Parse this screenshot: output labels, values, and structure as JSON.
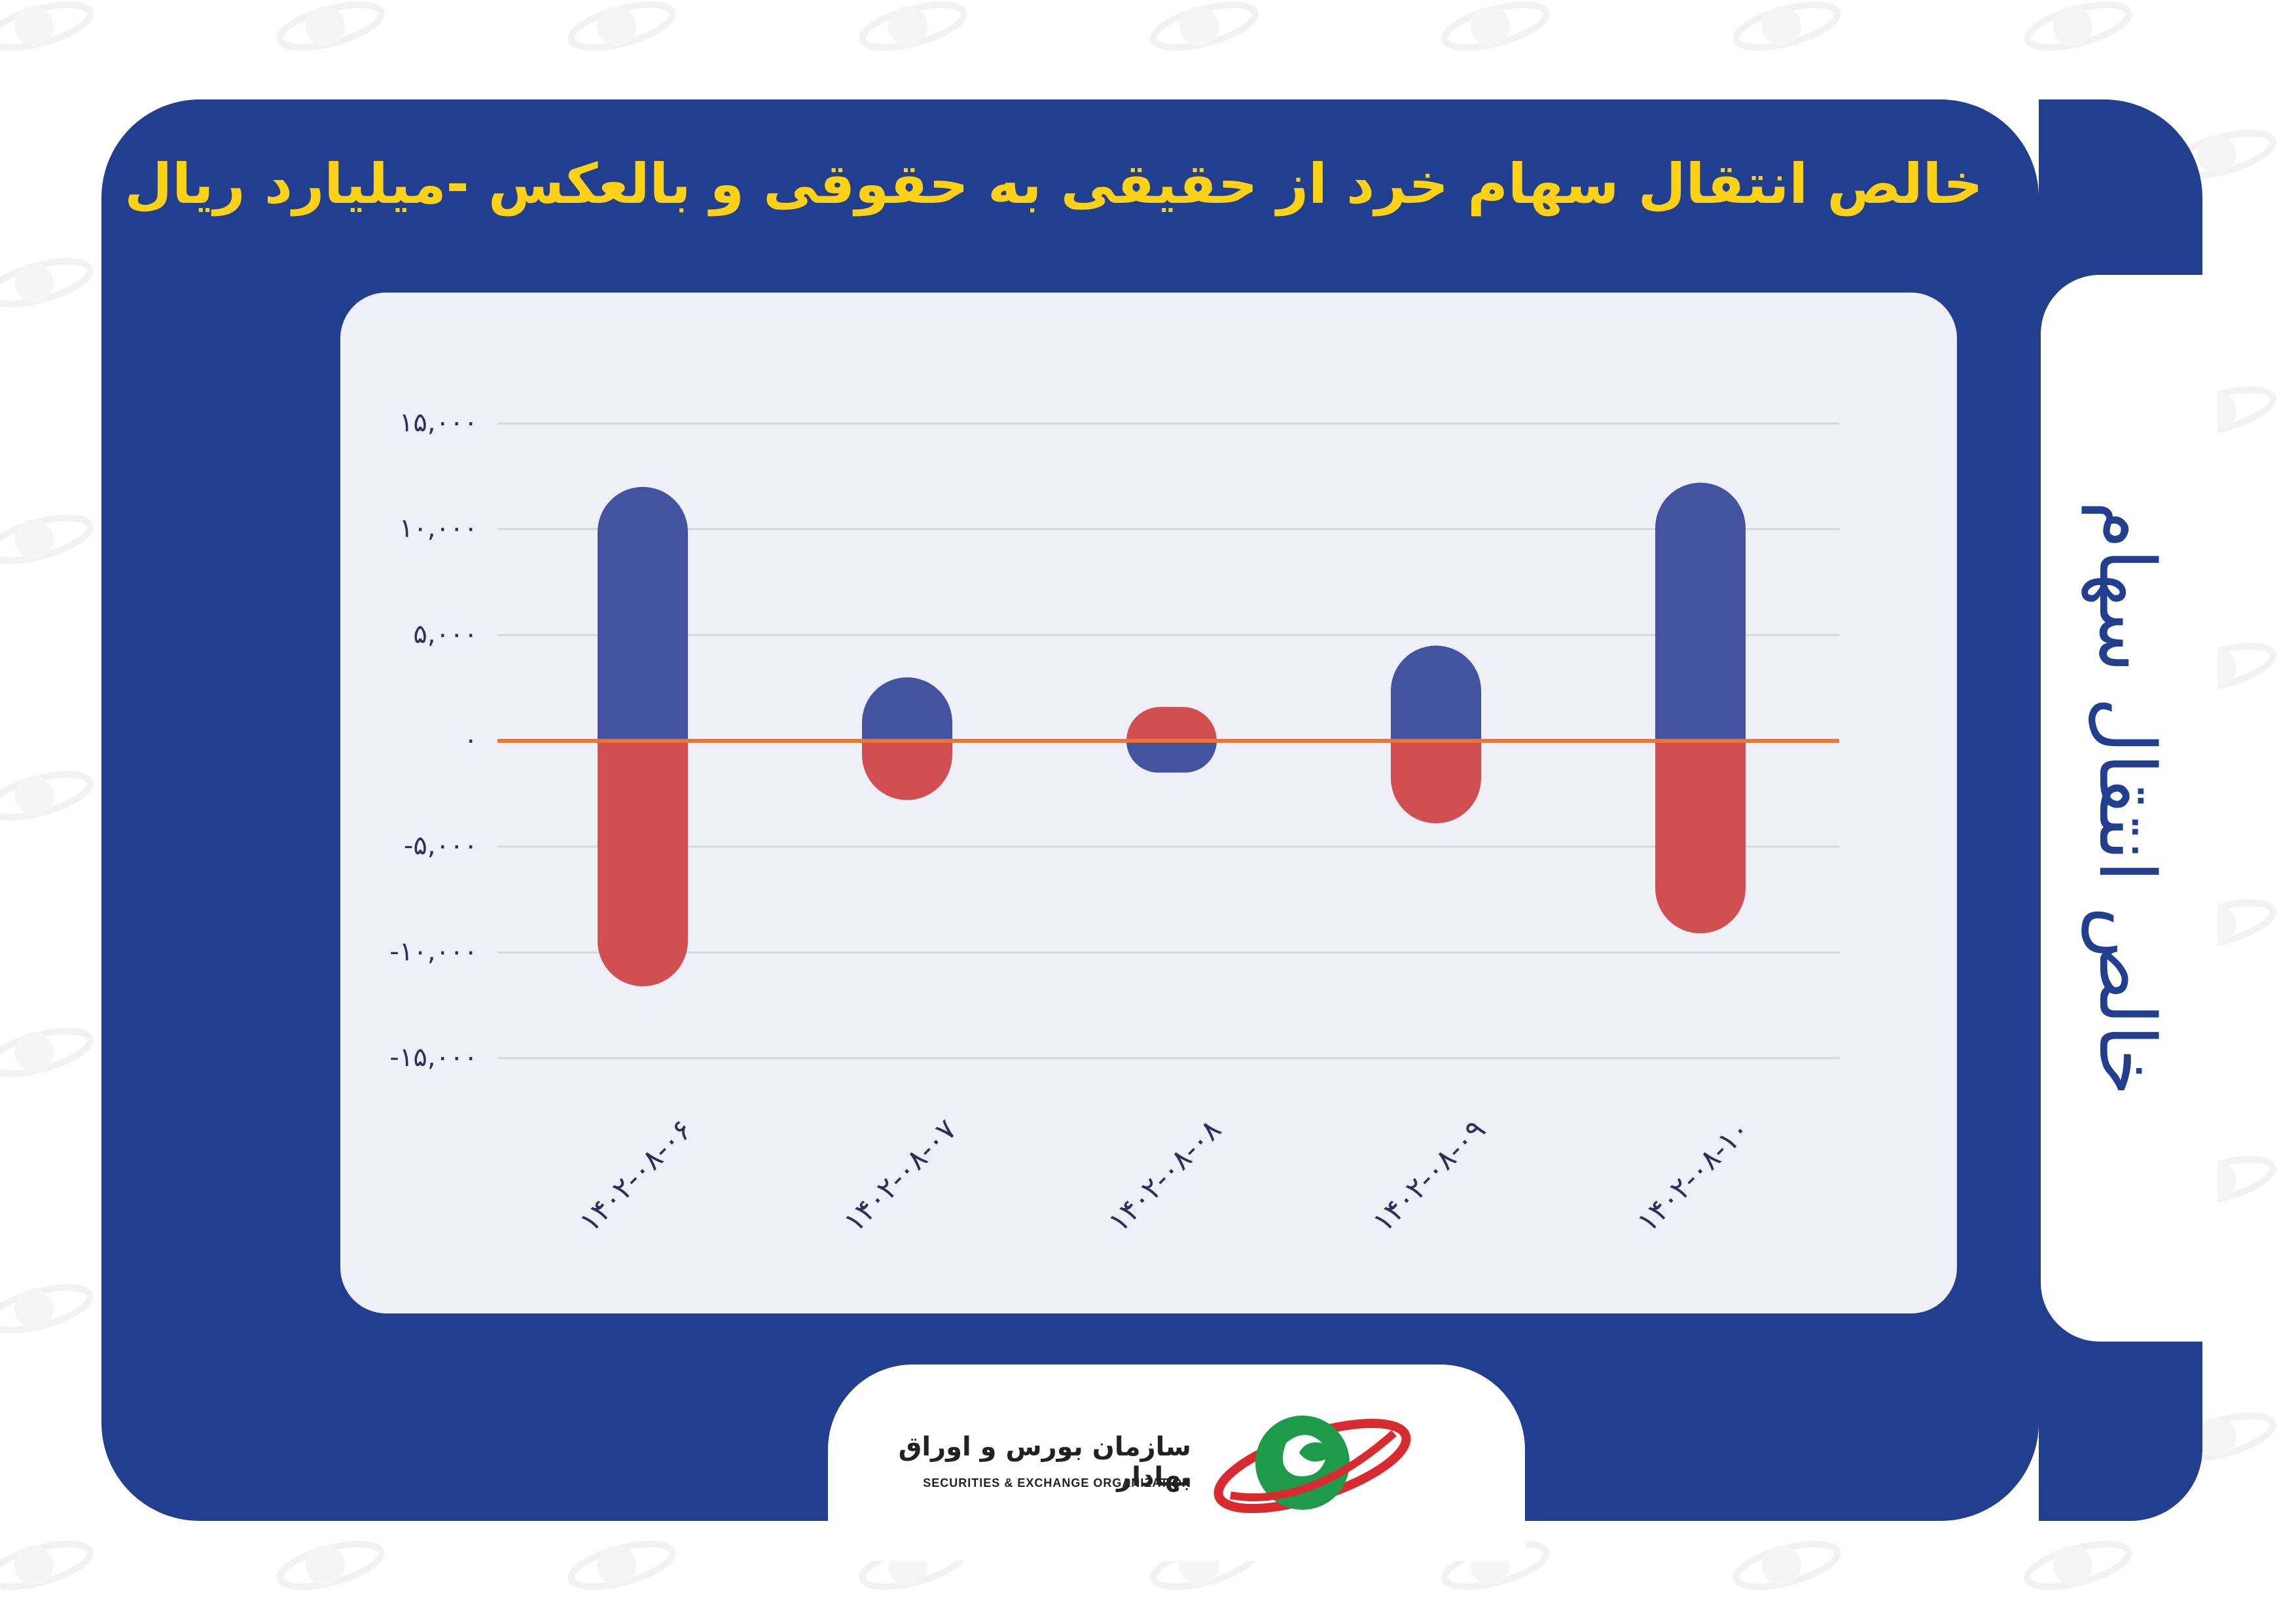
{
  "title": "خالص انتقال سهام خرد از حقیقی به حقوقی و بالعکس -میلیارد ریال",
  "side_title": "خالص انتقال سهام",
  "organization": {
    "name_fa": "سازمان بورس و اوراق بهادار",
    "name_en": "SECURITIES & EXCHANGE ORGANIZATION"
  },
  "colors": {
    "background": "#ffffff",
    "panel": "#223e8e",
    "title": "#fcd116",
    "card": "#eeeff7",
    "series_positive": "#44539f",
    "series_negative": "#d14f50",
    "zero_line": "#f0732f"
  },
  "icons": [
    "organization-logo",
    "watermark-logo"
  ],
  "chart_data": {
    "type": "bar",
    "categories": [
      "۱۴۰۲-۰۸-۰۶",
      "۱۴۰۲-۰۸-۰۷",
      "۱۴۰۲-۰۸-۰۸",
      "۱۴۰۲-۰۸-۰۹",
      "۱۴۰۲-۰۸-۱۰"
    ],
    "series": [
      {
        "values": [
          12000,
          3000,
          -1500,
          4500,
          12200
        ]
      },
      {
        "values": [
          -11600,
          -2800,
          1600,
          -3900,
          -9100
        ]
      }
    ],
    "yticks": [
      15000,
      10000,
      5000,
      0,
      -5000,
      -10000,
      -15000
    ],
    "ytick_labels": [
      "۱۵,۰۰۰",
      "۱۰,۰۰۰",
      "۵,۰۰۰",
      "۰",
      "-۵,۰۰۰",
      "-۱۰,۰۰۰",
      "-۱۵,۰۰۰"
    ],
    "ylim": [
      -15000,
      15000
    ],
    "xlabel": "",
    "ylabel": "",
    "grid": true,
    "legend": "none",
    "stacked": true
  }
}
